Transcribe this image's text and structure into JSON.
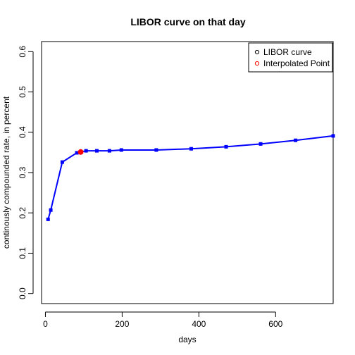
{
  "chart_data": {
    "type": "line",
    "title": "LIBOR curve on that day",
    "xlabel": "days",
    "ylabel": "continously compounded rate, in percent",
    "xlim": [
      -10,
      750
    ],
    "ylim": [
      -0.025,
      0.625
    ],
    "x_ticks": [
      0,
      200,
      400,
      600
    ],
    "x_tick_labels": [
      "0",
      "200",
      "400",
      "600"
    ],
    "y_ticks": [
      0.0,
      0.1,
      0.2,
      0.3,
      0.4,
      0.5,
      0.6
    ],
    "y_tick_labels": [
      "0.0",
      "0.1",
      "0.2",
      "0.3",
      "0.4",
      "0.5",
      "0.6"
    ],
    "grid": false,
    "legend_position": "top-right",
    "series": [
      {
        "name": "LIBOR curve",
        "color": "#0000ff",
        "x": [
          7,
          14,
          44,
          82,
          106,
          134,
          167,
          198,
          289,
          380,
          471,
          561,
          652,
          750
        ],
        "y": [
          0.184,
          0.207,
          0.326,
          0.349,
          0.354,
          0.354,
          0.354,
          0.356,
          0.356,
          0.359,
          0.364,
          0.371,
          0.38,
          0.391
        ]
      },
      {
        "name": "Interpolated Point",
        "color": "#ff0000",
        "x": [
          92
        ],
        "y": [
          0.351
        ]
      }
    ]
  }
}
